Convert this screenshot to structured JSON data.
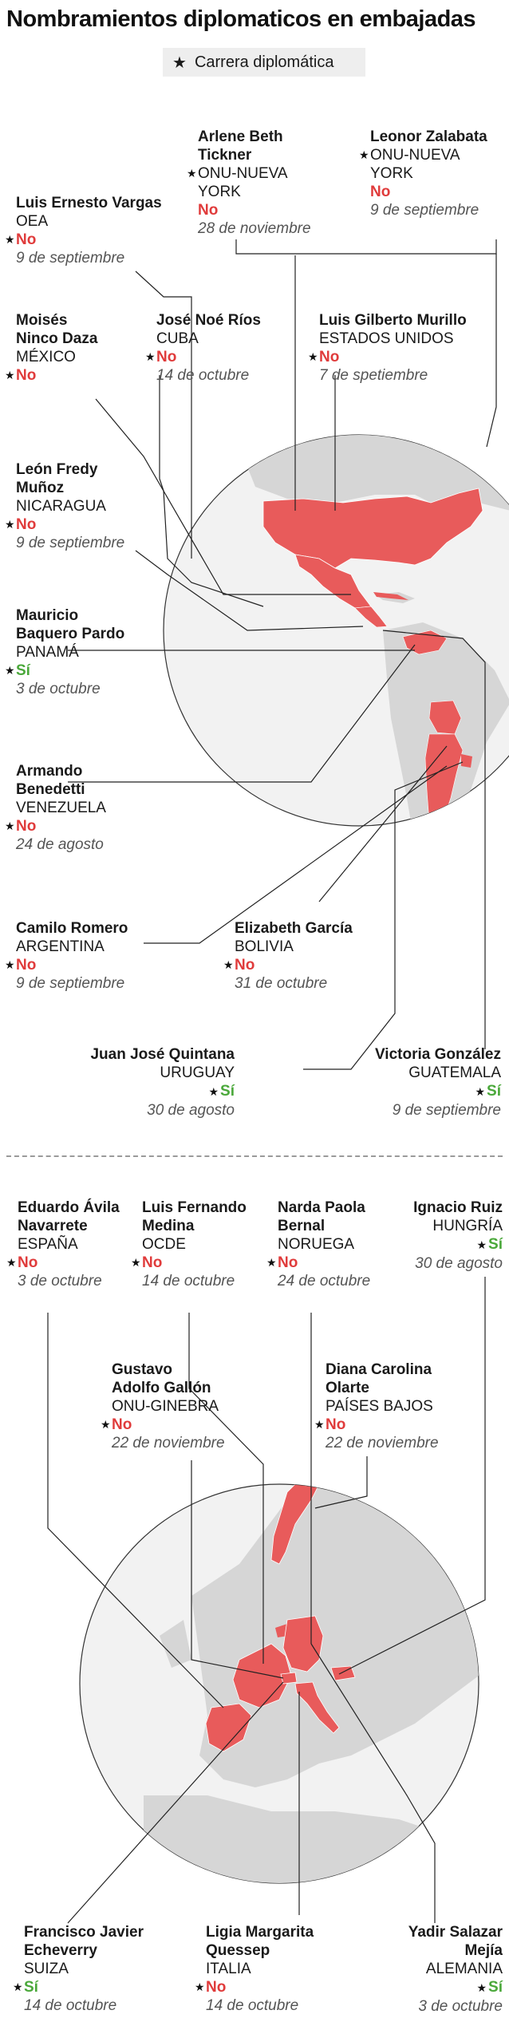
{
  "title": "Nombramientos diplomaticos en embajadas",
  "legend": {
    "icon": "star-icon",
    "label": "Carrera diplomática"
  },
  "colors": {
    "map_highlight": "#e85b5b",
    "no": "#e03b3b",
    "si": "#4aa83a",
    "land": "#d6d6d6",
    "globe": "#f2f2f2"
  },
  "america": [
    {
      "name": "Arlene Beth\nTickner",
      "post": "ONU-NUEVA\nYORK",
      "star": true,
      "result": "No",
      "date": "28 de noviembre"
    },
    {
      "name": "Leonor Zalabata",
      "post": "ONU-NUEVA\nYORK",
      "star": true,
      "result": "No",
      "date": "9 de septiembre"
    },
    {
      "name": "Luis Ernesto Vargas",
      "post": "OEA",
      "star": true,
      "result": "No",
      "date": "9 de septiembre"
    },
    {
      "name": "Moisés\nNinco Daza",
      "post": "MÉXICO",
      "star": true,
      "result": "No",
      "date": ""
    },
    {
      "name": "José Noé Ríos",
      "post": "CUBA",
      "star": true,
      "result": "No",
      "date": "14 de octubre"
    },
    {
      "name": "Luis Gilberto Murillo",
      "post": "ESTADOS UNIDOS",
      "star": true,
      "result": "No",
      "date": "7 de spetiembre"
    },
    {
      "name": "León Fredy\nMuñoz",
      "post": "NICARAGUA",
      "star": true,
      "result": "No",
      "date": "9 de septiembre"
    },
    {
      "name": "Mauricio\nBaquero Pardo",
      "post": "PANAMÁ",
      "star": true,
      "result": "Sí",
      "date": "3 de octubre"
    },
    {
      "name": "Armando\nBenedetti",
      "post": "VENEZUELA",
      "star": true,
      "result": "No",
      "date": "24 de agosto"
    },
    {
      "name": "Camilo Romero",
      "post": "ARGENTINA",
      "star": true,
      "result": "No",
      "date": "9 de septiembre"
    },
    {
      "name": "Elizabeth García",
      "post": "BOLIVIA",
      "star": true,
      "result": "No",
      "date": "31 de octubre"
    },
    {
      "name": "Juan José Quintana",
      "post": "URUGUAY",
      "star": true,
      "result": "Sí",
      "date": "30 de agosto"
    },
    {
      "name": "Victoria González",
      "post": "GUATEMALA",
      "star": true,
      "result": "Sí",
      "date": "9 de septiembre"
    }
  ],
  "europe": [
    {
      "name": "Eduardo Ávila\nNavarrete",
      "post": "ESPAÑA",
      "star": true,
      "result": "No",
      "date": "3 de octubre"
    },
    {
      "name": "Luis Fernando\nMedina",
      "post": "OCDE",
      "star": true,
      "result": "No",
      "date": "14 de octubre"
    },
    {
      "name": "Narda Paola\nBernal",
      "post": "NORUEGA",
      "star": true,
      "result": "No",
      "date": "24 de octubre"
    },
    {
      "name": "Ignacio Ruiz",
      "post": "HUNGRÍA",
      "star": true,
      "result": "Sí",
      "date": "30 de agosto"
    },
    {
      "name": "Gustavo\nAdolfo Gallón",
      "post": "ONU-GINEBRA",
      "star": true,
      "result": "No",
      "date": "22 de noviembre"
    },
    {
      "name": "Diana Carolina\nOlarte",
      "post": "PAÍSES BAJOS",
      "star": true,
      "result": "No",
      "date": "22 de noviembre"
    },
    {
      "name": "Francisco Javier\nEcheverry",
      "post": "SUIZA",
      "star": true,
      "result": "Sí",
      "date": "14 de octubre"
    },
    {
      "name": "Ligia Margarita\nQuessep",
      "post": "ITALIA",
      "star": true,
      "result": "No",
      "date": "14 de octubre"
    },
    {
      "name": "Yadir Salazar\nMejía",
      "post": "ALEMANIA",
      "star": true,
      "result": "Sí",
      "date": "3 de octubre"
    }
  ]
}
